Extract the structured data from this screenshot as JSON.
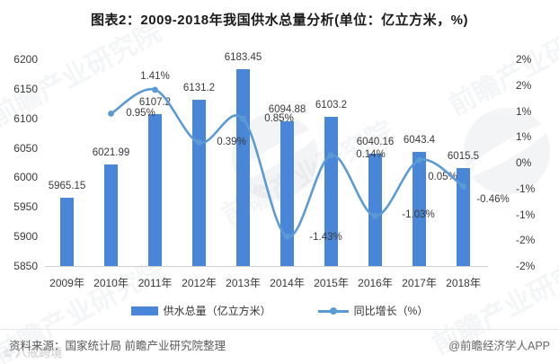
{
  "title": "图表2：2009-2018年我国供水总量分析(单位：亿立方米，%)",
  "source_note": "资料来源：国家统计局 前瞻产业研究院整理",
  "credit": "@前瞻经济学人APP",
  "watermarks": {
    "brand": "前瞻产业研究院",
    "corner": "© 八戒跨境"
  },
  "colors": {
    "bar": "#4A86D8",
    "line": "#5B9BD5",
    "axis_text": "#3a3a3a",
    "title_text": "#1a1a1a",
    "source_text": "#595959"
  },
  "chart_data": {
    "type": "bar+line",
    "title": "图表2：2009-2018年我国供水总量分析(单位：亿立方米，%)",
    "categories": [
      "2009年",
      "2010年",
      "2011年",
      "2012年",
      "2013年",
      "2014年",
      "2015年",
      "2016年",
      "2017年",
      "2018年"
    ],
    "series": [
      {
        "name": "供水总量（亿立方米）",
        "type": "bar",
        "axis": "left",
        "values": [
          5965.15,
          6021.99,
          6107.2,
          6131.2,
          6183.45,
          6094.88,
          6103.2,
          6040.16,
          6043.4,
          6015.5
        ],
        "value_labels": [
          "5965.15",
          "6021.99",
          "6107.2",
          "6131.2",
          "6183.45",
          "6094.88",
          "6103.2",
          "6040.16",
          "6043.4",
          "6015.5"
        ]
      },
      {
        "name": "同比增长（%）",
        "type": "line",
        "axis": "right",
        "start_index": 1,
        "values": [
          0.95,
          1.41,
          0.39,
          0.85,
          -1.43,
          0.14,
          -1.03,
          0.05,
          -0.46
        ],
        "value_labels": [
          "0.95%",
          "1.41%",
          "0.39%",
          "0.85%",
          "-1.43%",
          "0.14%",
          "-1.03%",
          "0.05%",
          "-0.46%"
        ],
        "label_offsets": [
          [
            33,
            1
          ],
          [
            0,
            -14
          ],
          [
            36,
            0
          ],
          [
            40,
            1
          ],
          [
            43,
            2
          ],
          [
            44,
            0
          ],
          [
            48,
            0
          ],
          [
            26,
            20
          ],
          [
            33,
            16
          ]
        ]
      }
    ],
    "left_axis": {
      "min": 5850,
      "max": 6200,
      "tick_labels": [
        "6200",
        "6150",
        "6100",
        "6050",
        "6000",
        "5950",
        "5900",
        "5850"
      ]
    },
    "right_axis": {
      "min": -2,
      "max": 2,
      "tick_labels": [
        "2%",
        "2%",
        "1%",
        "1%",
        "0%",
        "-1%",
        "-1%",
        "-2%",
        "-2%"
      ]
    },
    "grid": false,
    "legend_position": "bottom"
  }
}
